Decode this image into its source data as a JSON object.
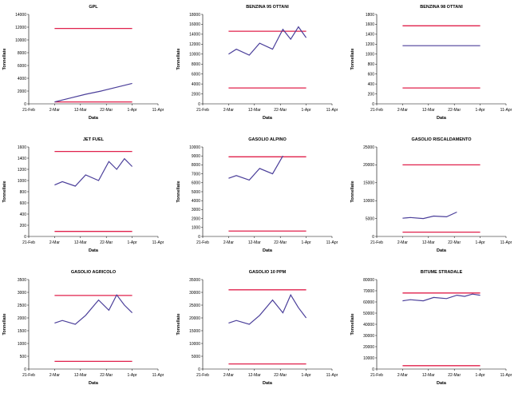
{
  "x_tick_labels": [
    "21-Feb",
    "2-Mar",
    "12-Mar",
    "22-Mar",
    "1-Apr",
    "11-Apr"
  ],
  "colors": {
    "series": "#4b3f9a",
    "limit": "#e0204b",
    "axis": "#000000"
  },
  "chart_data": [
    {
      "type": "line",
      "title": "GPL",
      "xlabel": "Data",
      "ylabel": "Tonnellate",
      "ylim": [
        0,
        14000
      ],
      "yticks": [
        "0",
        "2000",
        "4000",
        "6000",
        "8000",
        "10000",
        "12000",
        "14000"
      ],
      "x": [
        "2-Mar",
        "8-Mar",
        "14-Mar",
        "20-Mar",
        "26-Mar",
        "1-Apr"
      ],
      "values": [
        300,
        900,
        1500,
        2000,
        2600,
        3200
      ],
      "limits": [
        11800,
        300
      ]
    },
    {
      "type": "line",
      "title": "BENZINA 95 OTTANI",
      "xlabel": "Data",
      "ylabel": "Tonnellate",
      "ylim": [
        0,
        18000
      ],
      "yticks": [
        "0",
        "2000",
        "4000",
        "6000",
        "8000",
        "10000",
        "12000",
        "14000",
        "16000",
        "18000"
      ],
      "x": [
        "2-Mar",
        "5-Mar",
        "10-Mar",
        "14-Mar",
        "19-Mar",
        "23-Mar",
        "26-Mar",
        "29-Mar",
        "1-Apr"
      ],
      "values": [
        10000,
        11000,
        9800,
        12200,
        11000,
        15000,
        13000,
        15500,
        13300
      ],
      "limits": [
        14600,
        3200
      ]
    },
    {
      "type": "line",
      "title": "BENZINA 98 OTTANI",
      "xlabel": "Data",
      "ylabel": "Tonnellate",
      "ylim": [
        0,
        1800
      ],
      "yticks": [
        "0",
        "200",
        "400",
        "600",
        "800",
        "1000",
        "1200",
        "1400",
        "1600",
        "1800"
      ],
      "x": [
        "2-Mar",
        "1-Apr"
      ],
      "values": [
        1170,
        1170
      ],
      "limits": [
        1570,
        320
      ]
    },
    {
      "type": "line",
      "title": "JET FUEL",
      "xlabel": "Data",
      "ylabel": "Tonnellate",
      "ylim": [
        0,
        1600
      ],
      "yticks": [
        "0",
        "200",
        "400",
        "600",
        "800",
        "1000",
        "1200",
        "1400",
        "1600"
      ],
      "x": [
        "2-Mar",
        "5-Mar",
        "10-Mar",
        "14-Mar",
        "19-Mar",
        "23-Mar",
        "26-Mar",
        "29-Mar",
        "1-Apr"
      ],
      "values": [
        920,
        980,
        900,
        1100,
        1000,
        1340,
        1200,
        1390,
        1250
      ],
      "limits": [
        1520,
        90
      ]
    },
    {
      "type": "line",
      "title": "GASOLIO ALPINO",
      "xlabel": "Data",
      "ylabel": "Tonnellate",
      "ylim": [
        0,
        10000
      ],
      "yticks": [
        "0",
        "1000",
        "2000",
        "3000",
        "4000",
        "5000",
        "6000",
        "7000",
        "8000",
        "9000",
        "10000"
      ],
      "x": [
        "2-Mar",
        "5-Mar",
        "10-Mar",
        "14-Mar",
        "19-Mar",
        "23-Mar"
      ],
      "values": [
        6500,
        6800,
        6300,
        7600,
        7000,
        9000
      ],
      "limits": [
        8900,
        600
      ]
    },
    {
      "type": "line",
      "title": "GASOLIO RISCALDAMENTO",
      "xlabel": "Data",
      "ylabel": "Tonnellate",
      "ylim": [
        0,
        25000
      ],
      "yticks": [
        "0",
        "5000",
        "10000",
        "15000",
        "20000",
        "25000"
      ],
      "x": [
        "2-Mar",
        "5-Mar",
        "10-Mar",
        "14-Mar",
        "19-Mar",
        "23-Mar"
      ],
      "values": [
        5100,
        5300,
        5000,
        5700,
        5500,
        6800
      ],
      "limits": [
        20000,
        1200
      ]
    },
    {
      "type": "line",
      "title": "GASOLIO AGRICOLO",
      "xlabel": "Data",
      "ylabel": "Tonnellate",
      "ylim": [
        0,
        3500
      ],
      "yticks": [
        "0",
        "500",
        "1000",
        "1500",
        "2000",
        "2500",
        "3000",
        "3500"
      ],
      "x": [
        "2-Mar",
        "5-Mar",
        "10-Mar",
        "14-Mar",
        "19-Mar",
        "23-Mar",
        "26-Mar",
        "29-Mar",
        "1-Apr"
      ],
      "values": [
        1800,
        1900,
        1750,
        2100,
        2700,
        2300,
        2900,
        2500,
        2200
      ],
      "limits": [
        2880,
        300
      ]
    },
    {
      "type": "line",
      "title": "GASOLIO 10 PPM",
      "xlabel": "Data",
      "ylabel": "Tonnellate",
      "ylim": [
        0,
        35000
      ],
      "yticks": [
        "0",
        "5000",
        "10000",
        "15000",
        "20000",
        "25000",
        "30000",
        "35000"
      ],
      "x": [
        "2-Mar",
        "5-Mar",
        "10-Mar",
        "14-Mar",
        "19-Mar",
        "23-Mar",
        "26-Mar",
        "29-Mar",
        "1-Apr"
      ],
      "values": [
        18000,
        19000,
        17500,
        21000,
        27000,
        22000,
        29000,
        24000,
        20000
      ],
      "limits": [
        31000,
        2000
      ]
    },
    {
      "type": "line",
      "title": "BITUME STRADALE",
      "xlabel": "Data",
      "ylabel": "Tonnellate",
      "ylim": [
        0,
        80000
      ],
      "yticks": [
        "0",
        "10000",
        "20000",
        "30000",
        "40000",
        "50000",
        "60000",
        "70000",
        "80000"
      ],
      "x": [
        "2-Mar",
        "5-Mar",
        "10-Mar",
        "14-Mar",
        "19-Mar",
        "23-Mar",
        "26-Mar",
        "29-Mar",
        "1-Apr"
      ],
      "values": [
        61000,
        62000,
        61000,
        64000,
        63000,
        66000,
        65000,
        67000,
        66000
      ],
      "limits": [
        68000,
        3000
      ]
    }
  ]
}
